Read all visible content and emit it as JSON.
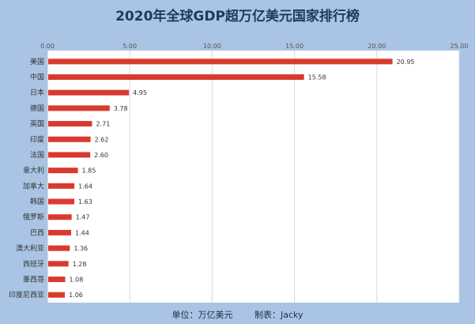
{
  "chart_data": {
    "type": "bar",
    "orientation": "horizontal",
    "title": "2020年全球GDP超万亿美元国家排行榜",
    "xlabel": "",
    "ylabel": "",
    "xlim": [
      0,
      25
    ],
    "ticks": [
      "0.00",
      "5.00",
      "10.00",
      "15.00",
      "20.00",
      "25.00"
    ],
    "grid": true,
    "categories": [
      "美国",
      "中国",
      "日本",
      "德国",
      "英国",
      "印度",
      "法国",
      "意大利",
      "加拿大",
      "韩国",
      "俄罗斯",
      "巴西",
      "澳大利亚",
      "西班牙",
      "墨西哥",
      "印度尼西亚"
    ],
    "values": [
      20.95,
      15.58,
      4.95,
      3.78,
      2.71,
      2.62,
      2.6,
      1.85,
      1.64,
      1.63,
      1.47,
      1.44,
      1.36,
      1.28,
      1.08,
      1.06
    ],
    "value_labels": [
      "20.95",
      "15.58",
      "4.95",
      "3.78",
      "2.71",
      "2.62",
      "2.60",
      "1.85",
      "1.64",
      "1.63",
      "1.47",
      "1.44",
      "1.36",
      "1.28",
      "1.08",
      "1.06"
    ],
    "bar_color": "#d93a2e"
  },
  "footer": {
    "unit": "单位：万亿美元",
    "author": "制表：Jacky"
  }
}
